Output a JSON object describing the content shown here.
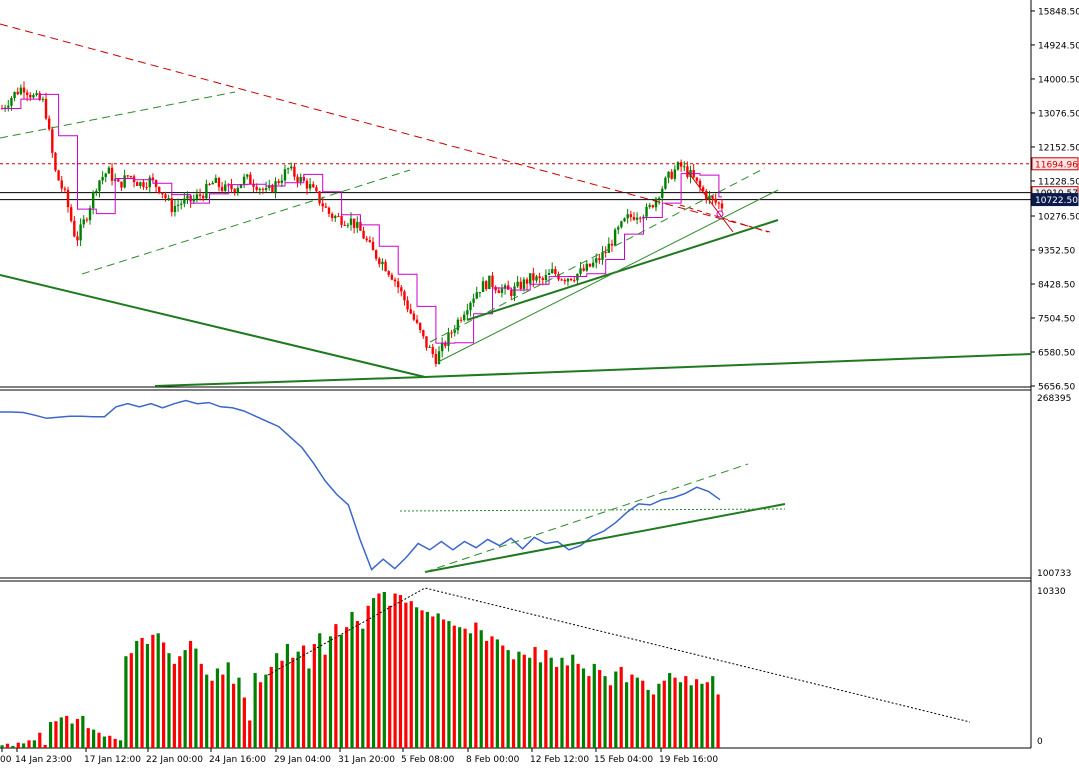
{
  "colors": {
    "background": "#ffffff",
    "axis": "#000000",
    "bull_candle": "#008000",
    "bear_candle": "#ff0000",
    "stepline": "#cc00cc",
    "indicator_line": "#3b66cc",
    "trend_solid": "#1f7a1f",
    "trend_dash_green": "#2e8b2e",
    "trend_dash_red": "#cc0000",
    "volume_up": "#008000",
    "volume_down": "#ff0000",
    "price_label_red_bg": "#ffe6e6",
    "price_label_blue_bg": "#0b1a4a"
  },
  "chart_data": [
    {
      "type": "line",
      "pane": "price",
      "title": "",
      "xlabel": "",
      "ylabel": "",
      "grid": false,
      "ylim": [
        5656.5,
        16010
      ],
      "y_ticks": [
        "15848.50",
        "14924.50",
        "14000.50",
        "13076.50",
        "12152.50",
        "11228.50",
        "10276.50",
        "9352.50",
        "8428.50",
        "7504.50",
        "6580.50",
        "5656.50"
      ],
      "price_labels": {
        "horizontal_red": "11694.96",
        "horizontal_mid": "10910.57",
        "current": "10722.50"
      },
      "x_ticks": [
        "00",
        "14 Jan 23:00",
        "17 Jan 12:00",
        "22 Jan 00:00",
        "24 Jan 16:00",
        "29 Jan 04:00",
        "31 Jan 20:00",
        "5 Feb 08:00",
        "8 Feb 00:00",
        "12 Feb 12:00",
        "15 Feb 04:00",
        "19 Feb 16:00"
      ],
      "close_path": [
        13200,
        13550,
        13800,
        13500,
        13350,
        11500,
        10800,
        9600,
        10300,
        11200,
        11500,
        11100,
        11400,
        11150,
        11250,
        11000,
        10500,
        10650,
        10700,
        10900,
        11200,
        11000,
        11050,
        11300,
        11150,
        10900,
        11200,
        11550,
        11300,
        11100,
        10700,
        10300,
        10200,
        10150,
        9800,
        9300,
        9000,
        8600,
        8000,
        7400,
        6800,
        6400,
        6900,
        7400,
        7900,
        8300,
        8500,
        8300,
        8200,
        8400,
        8600,
        8500,
        8750,
        8600,
        8650,
        8800,
        9000,
        9300,
        9800,
        10200,
        10350,
        10400,
        10900,
        11350,
        11650,
        11400,
        11000,
        10700,
        10550
      ]
    },
    {
      "type": "line",
      "pane": "indicator",
      "ylim": [
        100733,
        268395
      ],
      "y_ticks": [
        "268395",
        "100733"
      ],
      "values": [
        254000,
        254000,
        253500,
        251000,
        248000,
        249000,
        250000,
        250000,
        249500,
        249500,
        259000,
        262000,
        259000,
        262000,
        258000,
        262000,
        265000,
        262000,
        263000,
        259000,
        258000,
        255000,
        250000,
        245000,
        240000,
        230000,
        220000,
        205000,
        188000,
        175000,
        165000,
        132000,
        103000,
        113000,
        104000,
        115000,
        128000,
        122000,
        130000,
        122000,
        130000,
        124000,
        132000,
        126000,
        133000,
        123000,
        134000,
        128000,
        130000,
        122000,
        126000,
        135000,
        140000,
        148000,
        158000,
        166000,
        165000,
        170000,
        172000,
        176000,
        182000,
        178000,
        170000
      ]
    },
    {
      "type": "bar",
      "pane": "volume",
      "ylim": [
        0,
        10330
      ],
      "y_ticks": [
        "10330",
        "0"
      ],
      "values": [
        180,
        280,
        130,
        350,
        300,
        500,
        500,
        1000,
        200,
        1700,
        1750,
        2000,
        2100,
        1600,
        1900,
        2100,
        1300,
        1200,
        1000,
        750,
        800,
        600,
        500,
        6000,
        6200,
        7000,
        7200,
        6800,
        7400,
        7500,
        6900,
        6200,
        5500,
        6000,
        6400,
        7000,
        6500,
        5500,
        4800,
        4400,
        5200,
        4800,
        5600,
        4200,
        4600,
        3300,
        1800,
        4900,
        4300,
        4800,
        5300,
        6200,
        5700,
        6800,
        5900,
        6300,
        6700,
        5200,
        6800,
        7500,
        6100,
        7300,
        8100,
        7400,
        7900,
        8900,
        8300,
        7800,
        9300,
        9800,
        10100,
        10200,
        9300,
        10100,
        10000,
        9500,
        9600,
        9200,
        9000,
        8900,
        8600,
        8800,
        8400,
        8300,
        8000,
        7900,
        7800,
        7500,
        8200,
        7700,
        7000,
        7300,
        7100,
        6700,
        6400,
        5800,
        6300,
        6100,
        5900,
        6600,
        5600,
        6400,
        5900,
        5300,
        5900,
        5400,
        6100,
        5500,
        5200,
        4700,
        5500,
        5100,
        4700,
        4100,
        5000,
        5300,
        4300,
        4800,
        4600,
        4400,
        3800,
        3500,
        4200,
        4400,
        4900,
        4600,
        4300,
        4700,
        4100,
        4500,
        4200,
        4300,
        4700,
        3500
      ],
      "colors": [
        "g",
        "r",
        "g",
        "r",
        "g",
        "r",
        "g",
        "r",
        "r",
        "g",
        "r",
        "g",
        "r",
        "g",
        "r",
        "g",
        "r",
        "g",
        "r",
        "g",
        "r",
        "r",
        "g",
        "g",
        "r",
        "g",
        "r",
        "g",
        "r",
        "g",
        "r",
        "g",
        "r",
        "r",
        "g",
        "r",
        "g",
        "r",
        "g",
        "r",
        "g",
        "r",
        "g",
        "r",
        "g",
        "r",
        "r",
        "g",
        "r",
        "g",
        "r",
        "g",
        "r",
        "g",
        "r",
        "g",
        "r",
        "g",
        "r",
        "g",
        "r",
        "g",
        "r",
        "g",
        "r",
        "g",
        "r",
        "g",
        "r",
        "g",
        "r",
        "g",
        "r",
        "r",
        "r",
        "r",
        "r",
        "g",
        "r",
        "g",
        "r",
        "g",
        "r",
        "g",
        "r",
        "g",
        "r",
        "g",
        "r",
        "g",
        "r",
        "r",
        "g",
        "r",
        "g",
        "r",
        "g",
        "r",
        "g",
        "r",
        "g",
        "r",
        "g",
        "r",
        "g",
        "r",
        "g",
        "r",
        "g",
        "r",
        "g",
        "r",
        "g",
        "r",
        "g",
        "r",
        "g",
        "r",
        "g",
        "r",
        "g",
        "r",
        "g",
        "r",
        "g",
        "r",
        "g",
        "r",
        "g",
        "r",
        "g",
        "r",
        "g",
        "r"
      ]
    }
  ]
}
